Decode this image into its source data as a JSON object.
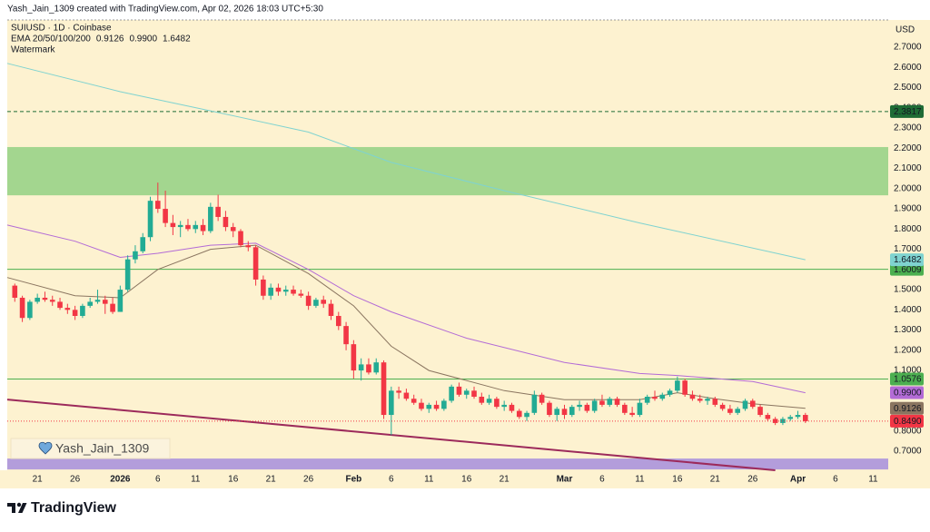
{
  "header": {
    "credit": "Yash_Jain_1309 created with TradingView.com, Apr 02, 2026 18:03 UTC+5:30",
    "symbol": "SUIUSD · 1D · Coinbase",
    "indicator": "EMA 20/50/100/200",
    "watermark_label": "Watermark",
    "watermark": "Yash_Jain_1309",
    "brand": "TradingView"
  },
  "chart_data": {
    "type": "candlestick",
    "currency": "USD",
    "up_color": "#22ab94",
    "down_color": "#f23645",
    "x": [
      "2025-12-18",
      "2025-12-19",
      "2025-12-20",
      "2025-12-21",
      "2025-12-22",
      "2025-12-23",
      "2025-12-24",
      "2025-12-25",
      "2025-12-26",
      "2025-12-27",
      "2025-12-28",
      "2025-12-29",
      "2025-12-30",
      "2025-12-31",
      "2026-01-01",
      "2026-01-02",
      "2026-01-03",
      "2026-01-04",
      "2026-01-05",
      "2026-01-06",
      "2026-01-07",
      "2026-01-08",
      "2026-01-09",
      "2026-01-10",
      "2026-01-11",
      "2026-01-12",
      "2026-01-13",
      "2026-01-14",
      "2026-01-15",
      "2026-01-16",
      "2026-01-17",
      "2026-01-18",
      "2026-01-19",
      "2026-01-20",
      "2026-01-21",
      "2026-01-22",
      "2026-01-23",
      "2026-01-24",
      "2026-01-25",
      "2026-01-26",
      "2026-01-27",
      "2026-01-28",
      "2026-01-29",
      "2026-01-30",
      "2026-01-31",
      "2026-02-01",
      "2026-02-02",
      "2026-02-03",
      "2026-02-04",
      "2026-02-05",
      "2026-02-06",
      "2026-02-07",
      "2026-02-08",
      "2026-02-09",
      "2026-02-10",
      "2026-02-11",
      "2026-02-12",
      "2026-02-13",
      "2026-02-14",
      "2026-02-15",
      "2026-02-16",
      "2026-02-17",
      "2026-02-18",
      "2026-02-19",
      "2026-02-20",
      "2026-02-21",
      "2026-02-22",
      "2026-02-23",
      "2026-02-24",
      "2026-02-25",
      "2026-02-26",
      "2026-02-27",
      "2026-02-28",
      "2026-03-01",
      "2026-03-02",
      "2026-03-03",
      "2026-03-04",
      "2026-03-05",
      "2026-03-06",
      "2026-03-07",
      "2026-03-08",
      "2026-03-09",
      "2026-03-10",
      "2026-03-11",
      "2026-03-12",
      "2026-03-13",
      "2026-03-14",
      "2026-03-15",
      "2026-03-16",
      "2026-03-17",
      "2026-03-18",
      "2026-03-19",
      "2026-03-20",
      "2026-03-21",
      "2026-03-22",
      "2026-03-23",
      "2026-03-24",
      "2026-03-25",
      "2026-03-26",
      "2026-03-27",
      "2026-03-28",
      "2026-03-29",
      "2026-03-30",
      "2026-03-31",
      "2026-04-01",
      "2026-04-02"
    ],
    "open": [
      1.52,
      1.46,
      1.36,
      1.44,
      1.46,
      1.45,
      1.44,
      1.41,
      1.4,
      1.37,
      1.42,
      1.44,
      1.45,
      1.43,
      1.39,
      1.5,
      1.65,
      1.69,
      1.76,
      1.94,
      1.9,
      1.83,
      1.81,
      1.82,
      1.8,
      1.82,
      1.79,
      1.91,
      1.86,
      1.81,
      1.79,
      1.72,
      1.71,
      1.55,
      1.47,
      1.51,
      1.49,
      1.5,
      1.48,
      1.47,
      1.42,
      1.45,
      1.43,
      1.37,
      1.32,
      1.23,
      1.1,
      1.13,
      1.09,
      1.14,
      0.88,
      1.0,
      0.99,
      0.96,
      0.94,
      0.91,
      0.93,
      0.91,
      0.95,
      1.02,
      0.98,
      1.0,
      0.97,
      0.94,
      0.96,
      0.92,
      0.93,
      0.9,
      0.87,
      0.89,
      0.98,
      0.94,
      0.88,
      0.91,
      0.88,
      0.92,
      0.93,
      0.9,
      0.95,
      0.93,
      0.96,
      0.93,
      0.89,
      0.88,
      0.94,
      0.97,
      0.96,
      0.98,
      1.0,
      1.05,
      0.98,
      0.96,
      0.95,
      0.96,
      0.93,
      0.91,
      0.89,
      0.91,
      0.95,
      0.92,
      0.88,
      0.86,
      0.84,
      0.86,
      0.87,
      0.88
    ],
    "high": [
      1.53,
      1.47,
      1.45,
      1.48,
      1.49,
      1.47,
      1.46,
      1.43,
      1.42,
      1.43,
      1.46,
      1.5,
      1.47,
      1.46,
      1.52,
      1.67,
      1.72,
      1.78,
      1.96,
      2.03,
      1.99,
      1.87,
      1.84,
      1.85,
      1.84,
      1.85,
      1.93,
      1.97,
      1.89,
      1.83,
      1.8,
      1.74,
      1.72,
      1.57,
      1.53,
      1.53,
      1.52,
      1.52,
      1.5,
      1.49,
      1.46,
      1.47,
      1.45,
      1.39,
      1.34,
      1.25,
      1.16,
      1.16,
      1.16,
      1.15,
      1.02,
      1.02,
      1.01,
      0.98,
      0.96,
      0.94,
      0.95,
      0.96,
      1.03,
      1.04,
      1.01,
      1.02,
      0.99,
      0.98,
      0.97,
      0.95,
      0.94,
      0.91,
      0.9,
      1.0,
      0.99,
      0.95,
      0.92,
      0.93,
      0.93,
      0.95,
      0.94,
      0.96,
      0.98,
      0.97,
      0.97,
      0.94,
      0.92,
      0.96,
      0.98,
      1.0,
      0.99,
      1.01,
      1.07,
      1.06,
      1.0,
      0.98,
      0.97,
      0.97,
      0.94,
      0.93,
      0.92,
      0.96,
      0.96,
      0.93,
      0.89,
      0.87,
      0.87,
      0.88,
      0.9,
      0.89
    ],
    "low": [
      1.44,
      1.34,
      1.35,
      1.43,
      1.44,
      1.42,
      1.4,
      1.38,
      1.35,
      1.36,
      1.41,
      1.43,
      1.38,
      1.38,
      1.39,
      1.49,
      1.63,
      1.68,
      1.74,
      1.88,
      1.81,
      1.77,
      1.76,
      1.79,
      1.78,
      1.77,
      1.78,
      1.84,
      1.79,
      1.76,
      1.71,
      1.69,
      1.52,
      1.45,
      1.45,
      1.47,
      1.47,
      1.47,
      1.46,
      1.4,
      1.41,
      1.41,
      1.35,
      1.3,
      1.2,
      1.06,
      1.05,
      1.08,
      1.08,
      0.86,
      0.78,
      0.96,
      0.95,
      0.93,
      0.9,
      0.89,
      0.9,
      0.9,
      0.94,
      0.97,
      0.96,
      0.96,
      0.93,
      0.93,
      0.91,
      0.9,
      0.89,
      0.86,
      0.85,
      0.88,
      0.93,
      0.87,
      0.85,
      0.86,
      0.87,
      0.9,
      0.89,
      0.89,
      0.92,
      0.92,
      0.92,
      0.88,
      0.87,
      0.87,
      0.93,
      0.95,
      0.95,
      0.97,
      0.99,
      0.97,
      0.95,
      0.94,
      0.93,
      0.92,
      0.9,
      0.88,
      0.88,
      0.9,
      0.91,
      0.87,
      0.85,
      0.83,
      0.83,
      0.85,
      0.86,
      0.84
    ],
    "close": [
      1.46,
      1.36,
      1.44,
      1.46,
      1.45,
      1.44,
      1.41,
      1.4,
      1.37,
      1.42,
      1.44,
      1.45,
      1.43,
      1.39,
      1.5,
      1.65,
      1.69,
      1.76,
      1.94,
      1.9,
      1.83,
      1.81,
      1.82,
      1.8,
      1.82,
      1.79,
      1.91,
      1.86,
      1.81,
      1.79,
      1.72,
      1.71,
      1.55,
      1.47,
      1.51,
      1.49,
      1.5,
      1.48,
      1.47,
      1.42,
      1.45,
      1.43,
      1.37,
      1.32,
      1.23,
      1.1,
      1.13,
      1.09,
      1.14,
      0.88,
      1.0,
      0.99,
      0.96,
      0.94,
      0.91,
      0.93,
      0.91,
      0.95,
      1.02,
      0.98,
      1.0,
      0.97,
      0.94,
      0.96,
      0.92,
      0.93,
      0.9,
      0.87,
      0.89,
      0.98,
      0.94,
      0.88,
      0.91,
      0.88,
      0.92,
      0.93,
      0.9,
      0.95,
      0.93,
      0.96,
      0.93,
      0.89,
      0.88,
      0.94,
      0.97,
      0.96,
      0.98,
      1.0,
      1.05,
      0.98,
      0.96,
      0.95,
      0.96,
      0.93,
      0.91,
      0.89,
      0.91,
      0.95,
      0.92,
      0.88,
      0.86,
      0.84,
      0.86,
      0.87,
      0.88,
      0.849
    ],
    "close_label": "0.8490",
    "ema": [
      {
        "color": "#8a7560",
        "last_label": "0.9126",
        "x": [
          "2025-12-17",
          "2025-12-26",
          "2026-01-01",
          "2026-01-06",
          "2026-01-13",
          "2026-01-19",
          "2026-01-26",
          "2026-02-01",
          "2026-02-06",
          "2026-02-11",
          "2026-02-21",
          "2026-03-01",
          "2026-03-11",
          "2026-03-16",
          "2026-03-21",
          "2026-03-26",
          "2026-04-02"
        ],
        "values": [
          1.56,
          1.47,
          1.46,
          1.6,
          1.7,
          1.72,
          1.58,
          1.42,
          1.22,
          1.1,
          1.0,
          0.955,
          0.955,
          0.99,
          0.96,
          0.935,
          0.9126
        ]
      },
      {
        "color": "#b36bd6",
        "last_label": "0.9900",
        "x": [
          "2025-12-17",
          "2025-12-26",
          "2026-01-01",
          "2026-01-06",
          "2026-01-13",
          "2026-01-19",
          "2026-01-26",
          "2026-02-01",
          "2026-02-06",
          "2026-02-16",
          "2026-03-01",
          "2026-03-11",
          "2026-03-16",
          "2026-03-26",
          "2026-04-02"
        ],
        "values": [
          1.82,
          1.74,
          1.66,
          1.68,
          1.72,
          1.73,
          1.6,
          1.47,
          1.39,
          1.26,
          1.14,
          1.085,
          1.075,
          1.045,
          0.99
        ]
      },
      {
        "color": "#7fd3d0",
        "last_label": "1.6482",
        "x": [
          "2025-12-17",
          "2026-01-01",
          "2026-01-13",
          "2026-01-26",
          "2026-02-06",
          "2026-02-21",
          "2026-03-11",
          "2026-04-02"
        ],
        "values": [
          2.62,
          2.48,
          2.385,
          2.28,
          2.13,
          1.99,
          1.83,
          1.6482
        ]
      }
    ],
    "levels": [
      {
        "value": 2.3817,
        "color": "#1e6b35",
        "style": "dashed"
      },
      {
        "value": 1.6009,
        "color": "#4caf50",
        "style": "solid"
      },
      {
        "value": 1.0576,
        "color": "#4caf50",
        "style": "solid"
      }
    ],
    "zone": {
      "from": 1.967,
      "to": 2.206,
      "color": "#a3d68f"
    },
    "band": {
      "from": 0.61,
      "to": 0.664,
      "color": "#b39ddb"
    },
    "trendline": {
      "color": "#9c2a5b",
      "x": [
        "2025-12-17",
        "2026-03-29"
      ],
      "values": [
        0.956,
        0.606
      ]
    },
    "ylim": [
      0.606,
      2.835
    ],
    "yticks": [
      {
        "value": 0.7,
        "label": "0.7000"
      },
      {
        "value": 0.8,
        "label": "0.8000"
      },
      {
        "value": 1.1,
        "label": "1.1000"
      },
      {
        "value": 1.2,
        "label": "1.2000"
      },
      {
        "value": 1.3,
        "label": "1.3000"
      },
      {
        "value": 1.4,
        "label": "1.4000"
      },
      {
        "value": 1.5,
        "label": "1.5000"
      },
      {
        "value": 1.7,
        "label": "1.7000"
      },
      {
        "value": 1.8,
        "label": "1.8000"
      },
      {
        "value": 1.9,
        "label": "1.9000"
      },
      {
        "value": 2.0,
        "label": "2.0000"
      },
      {
        "value": 2.1,
        "label": "2.1000"
      },
      {
        "value": 2.2,
        "label": "2.2000"
      },
      {
        "value": 2.3,
        "label": "2.3000"
      },
      {
        "value": 2.4,
        "label": "2.4000"
      },
      {
        "value": 2.5,
        "label": "2.5000"
      },
      {
        "value": 2.6,
        "label": "2.6000"
      },
      {
        "value": 2.7,
        "label": "2.7000"
      }
    ],
    "xlim": [
      "2025-12-17",
      "2026-04-13"
    ],
    "xticks": [
      {
        "value": "2025-12-21",
        "label": "21"
      },
      {
        "value": "2025-12-26",
        "label": "26"
      },
      {
        "value": "2026-01-01",
        "label": "2026"
      },
      {
        "value": "2026-01-06",
        "label": "6"
      },
      {
        "value": "2026-01-11",
        "label": "11"
      },
      {
        "value": "2026-01-16",
        "label": "16"
      },
      {
        "value": "2026-01-21",
        "label": "21"
      },
      {
        "value": "2026-01-26",
        "label": "26"
      },
      {
        "value": "2026-02-01",
        "label": "Feb"
      },
      {
        "value": "2026-02-06",
        "label": "6"
      },
      {
        "value": "2026-02-11",
        "label": "11"
      },
      {
        "value": "2026-02-16",
        "label": "16"
      },
      {
        "value": "2026-02-21",
        "label": "21"
      },
      {
        "value": "2026-03-01",
        "label": "Mar"
      },
      {
        "value": "2026-03-06",
        "label": "6"
      },
      {
        "value": "2026-03-11",
        "label": "11"
      },
      {
        "value": "2026-03-16",
        "label": "16"
      },
      {
        "value": "2026-03-21",
        "label": "21"
      },
      {
        "value": "2026-03-26",
        "label": "26"
      },
      {
        "value": "2026-04-01",
        "label": "Apr"
      },
      {
        "value": "2026-04-06",
        "label": "6"
      },
      {
        "value": "2026-04-11",
        "label": "11"
      }
    ]
  }
}
